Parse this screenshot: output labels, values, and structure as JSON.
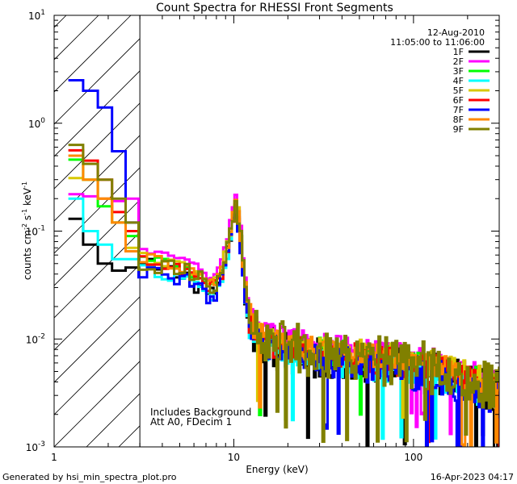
{
  "chart_data": {
    "type": "line",
    "step": true,
    "title": "Count Spectra for RHESSI Front Segments",
    "xlabel": "Energy (keV)",
    "ylabel_parts": [
      "counts cm",
      "-2",
      " s",
      "-1",
      " keV",
      "-1"
    ],
    "xscale": "log",
    "yscale": "log",
    "xlim": [
      1,
      300
    ],
    "ylim": [
      0.001,
      10
    ],
    "x_ticks": [
      {
        "value": 1,
        "label": "1"
      },
      {
        "value": 10,
        "label": "10"
      },
      {
        "value": 100,
        "label": "100"
      }
    ],
    "y_ticks": [
      {
        "value": 0.001,
        "mant": "10",
        "exp": "-3"
      },
      {
        "value": 0.01,
        "mant": "10",
        "exp": "-2"
      },
      {
        "value": 0.1,
        "mant": "10",
        "exp": "-1"
      },
      {
        "value": 1,
        "mant": "10",
        "exp": "0"
      },
      {
        "value": 10,
        "mant": "10",
        "exp": "1"
      }
    ],
    "legend_header": [
      "12-Aug-2010",
      "11:05:00 to 11:06:00"
    ],
    "legend_position": "top-right",
    "shaded_region": {
      "x_from": 1,
      "x_to": 3,
      "style": "diagonal-hatch"
    },
    "annotations": [
      "Includes Background",
      "Att A0, FDecim 1"
    ],
    "seed_points": [
      [
        1.2,
        0.15
      ],
      [
        1.4,
        0.1
      ],
      [
        1.65,
        0.062
      ],
      [
        2.0,
        0.05
      ],
      [
        2.4,
        0.052
      ],
      [
        2.85,
        0.05
      ],
      [
        3.4,
        0.048
      ],
      [
        4.0,
        0.045
      ],
      [
        4.8,
        0.042
      ],
      [
        5.6,
        0.038
      ],
      [
        6.4,
        0.033
      ],
      [
        7.2,
        0.028
      ],
      [
        8.0,
        0.03
      ],
      [
        8.6,
        0.04
      ],
      [
        9.2,
        0.06
      ],
      [
        9.7,
        0.1
      ],
      [
        10.2,
        0.17
      ],
      [
        10.7,
        0.12
      ],
      [
        11.2,
        0.05
      ],
      [
        11.8,
        0.02
      ],
      [
        12.6,
        0.012
      ],
      [
        14,
        0.0095
      ],
      [
        17,
        0.0085
      ],
      [
        22,
        0.0078
      ],
      [
        30,
        0.007
      ],
      [
        45,
        0.0065
      ],
      [
        70,
        0.006
      ],
      [
        100,
        0.0055
      ],
      [
        150,
        0.0048
      ],
      [
        200,
        0.004
      ],
      [
        260,
        0.0034
      ],
      [
        300,
        0.0031
      ]
    ],
    "series": [
      {
        "name": "1F",
        "color": "#000000",
        "scale": 0.95,
        "noise": 0.45,
        "low_values": [
          0.13,
          0.075,
          0.05,
          0.043,
          0.046
        ]
      },
      {
        "name": "2F",
        "color": "#ff00ff",
        "scale": 1.35,
        "noise": 0.18,
        "low_values": [
          0.22,
          0.21,
          0.2,
          0.19,
          0.2
        ]
      },
      {
        "name": "3F",
        "color": "#00ff00",
        "scale": 1.1,
        "noise": 0.3,
        "low_values": [
          0.46,
          0.3,
          0.17,
          0.12,
          0.09
        ]
      },
      {
        "name": "4F",
        "color": "#00ffff",
        "scale": 0.9,
        "noise": 0.3,
        "low_values": [
          0.2,
          0.1,
          0.075,
          0.055,
          0.055
        ]
      },
      {
        "name": "5F",
        "color": "#d8c800",
        "scale": 1.15,
        "noise": 0.3,
        "low_values": [
          0.31,
          0.3,
          0.2,
          0.12,
          0.07
        ]
      },
      {
        "name": "6F",
        "color": "#ff0000",
        "scale": 1.05,
        "noise": 0.3,
        "low_values": [
          0.56,
          0.45,
          0.3,
          0.15,
          0.1
        ]
      },
      {
        "name": "7F",
        "color": "#0000ff",
        "scale": 0.9,
        "noise": 0.4,
        "low_values": [
          2.5,
          2.0,
          1.4,
          0.55,
          0.12
        ]
      },
      {
        "name": "8F",
        "color": "#ff8800",
        "scale": 1.15,
        "noise": 0.25,
        "low_values": [
          0.5,
          0.3,
          0.2,
          0.12,
          0.065
        ]
      },
      {
        "name": "9F",
        "color": "#808000",
        "scale": 1.05,
        "noise": 0.55,
        "low_values": [
          0.63,
          0.42,
          0.3,
          0.2,
          0.12
        ]
      }
    ]
  },
  "footer": {
    "left": "Generated by hsi_min_spectra_plot.pro",
    "right": "16-Apr-2023 04:17"
  }
}
